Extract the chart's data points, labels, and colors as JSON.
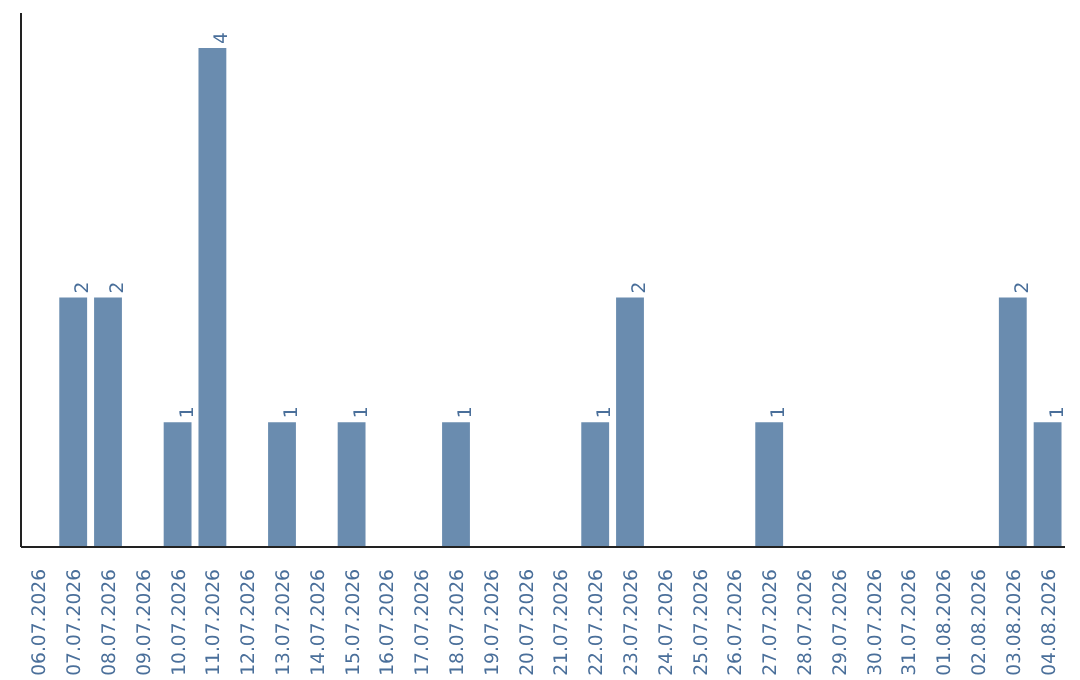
{
  "chart_data": {
    "type": "bar",
    "categories": [
      "06.07.2026",
      "07.07.2026",
      "08.07.2026",
      "09.07.2026",
      "10.07.2026",
      "11.07.2026",
      "12.07.2026",
      "13.07.2026",
      "14.07.2026",
      "15.07.2026",
      "16.07.2026",
      "17.07.2026",
      "18.07.2026",
      "19.07.2026",
      "20.07.2026",
      "21.07.2026",
      "22.07.2026",
      "23.07.2026",
      "24.07.2026",
      "25.07.2026",
      "26.07.2026",
      "27.07.2026",
      "28.07.2026",
      "29.07.2026",
      "30.07.2026",
      "31.07.2026",
      "01.08.2026",
      "02.08.2026",
      "03.08.2026",
      "04.08.2026"
    ],
    "values": [
      0,
      2,
      2,
      0,
      1,
      4,
      0,
      1,
      0,
      1,
      0,
      0,
      1,
      0,
      0,
      0,
      1,
      2,
      0,
      0,
      0,
      1,
      0,
      0,
      0,
      0,
      0,
      0,
      2,
      1
    ],
    "value_labels": [
      null,
      "2",
      "2",
      null,
      "1",
      "4",
      null,
      "1",
      null,
      "1",
      null,
      null,
      "1",
      null,
      null,
      null,
      "1",
      "2",
      null,
      null,
      null,
      "1",
      null,
      null,
      null,
      null,
      null,
      null,
      "2",
      "1"
    ],
    "color": "#6a8caf",
    "grid": false,
    "tick_labels": "x"
  }
}
